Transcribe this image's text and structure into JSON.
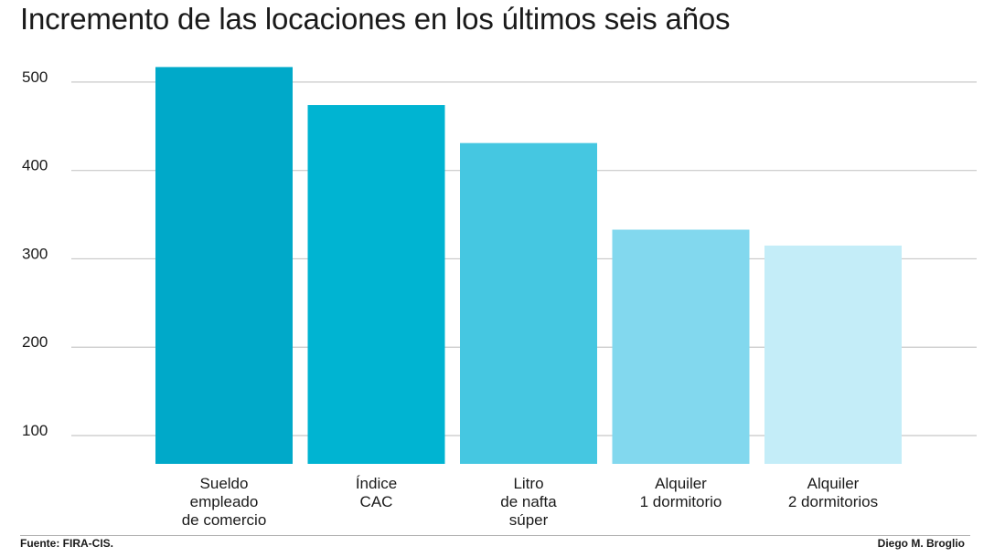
{
  "chart_data": {
    "type": "bar",
    "title": "Incremento de las locaciones en los últimos seis años",
    "categories": [
      [
        "Sueldo",
        "empleado",
        "de comercio"
      ],
      [
        "Índice",
        "CAC"
      ],
      [
        "Litro",
        "de nafta",
        "súper"
      ],
      [
        "Alquiler",
        "1 dormitorio"
      ],
      [
        "Alquiler",
        "2 dormitorios"
      ]
    ],
    "values": [
      517,
      474,
      431,
      333,
      315
    ],
    "colors": [
      "#00a9c9",
      "#00b4d2",
      "#45c7e1",
      "#82d8ee",
      "#c4edf8"
    ],
    "yticks": [
      100,
      200,
      300,
      400,
      500
    ],
    "ylim": [
      68,
      535
    ],
    "grid": true,
    "xlabel": "",
    "ylabel": ""
  },
  "footer": {
    "source": "Fuente: FIRA-CIS.",
    "author": "Diego M. Broglio"
  }
}
